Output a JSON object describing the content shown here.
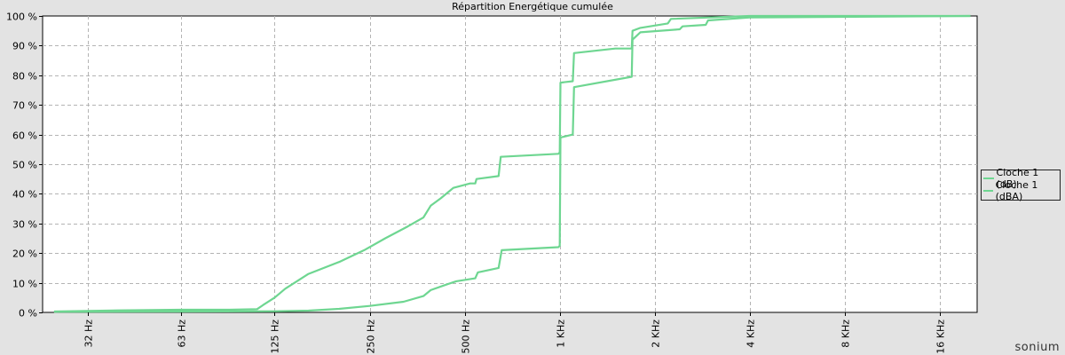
{
  "brand": "sonium",
  "colors": {
    "series": "#6ed691",
    "grid": "#b4b4b4",
    "axis": "#000000"
  },
  "chart_data": {
    "type": "line",
    "title": "Répartition Energétique cumulée",
    "xscale": "log2",
    "xlim": [
      23,
      21000
    ],
    "ylim": [
      0,
      100
    ],
    "grid": true,
    "legend_position": "right",
    "x_ticks": [
      {
        "value": 32,
        "label": "32 Hz"
      },
      {
        "value": 63,
        "label": "63 Hz"
      },
      {
        "value": 125,
        "label": "125 Hz"
      },
      {
        "value": 250,
        "label": "250 Hz"
      },
      {
        "value": 500,
        "label": "500 Hz"
      },
      {
        "value": 1000,
        "label": "1 KHz"
      },
      {
        "value": 2000,
        "label": "2 KHz"
      },
      {
        "value": 4000,
        "label": "4 KHz"
      },
      {
        "value": 8000,
        "label": "8 KHz"
      },
      {
        "value": 16000,
        "label": "16 KHz"
      }
    ],
    "y_ticks": [
      {
        "value": 0,
        "label": "0 %"
      },
      {
        "value": 10,
        "label": "10 %"
      },
      {
        "value": 20,
        "label": "20 %"
      },
      {
        "value": 30,
        "label": "30 %"
      },
      {
        "value": 40,
        "label": "40 %"
      },
      {
        "value": 50,
        "label": "50 %"
      },
      {
        "value": 60,
        "label": "60 %"
      },
      {
        "value": 70,
        "label": "70 %"
      },
      {
        "value": 80,
        "label": "80 %"
      },
      {
        "value": 90,
        "label": "90 %"
      },
      {
        "value": 100,
        "label": "100 %"
      }
    ],
    "series": [
      {
        "name": "Cloche 1 (dB)",
        "points": [
          [
            25,
            0.3
          ],
          [
            40,
            0.7
          ],
          [
            63,
            0.9
          ],
          [
            90,
            0.9
          ],
          [
            110,
            1.1
          ],
          [
            115,
            2.5
          ],
          [
            125,
            5
          ],
          [
            135,
            8
          ],
          [
            160,
            13
          ],
          [
            200,
            17
          ],
          [
            240,
            21
          ],
          [
            280,
            25
          ],
          [
            330,
            29
          ],
          [
            370,
            32
          ],
          [
            390,
            36
          ],
          [
            420,
            38.5
          ],
          [
            460,
            42
          ],
          [
            520,
            43.5
          ],
          [
            540,
            43.5
          ],
          [
            545,
            45
          ],
          [
            640,
            46
          ],
          [
            650,
            52.5
          ],
          [
            990,
            53.5
          ],
          [
            1000,
            54
          ],
          [
            1005,
            77.5
          ],
          [
            1100,
            78
          ],
          [
            1110,
            87.5
          ],
          [
            1500,
            89
          ],
          [
            1690,
            89
          ],
          [
            1700,
            95
          ],
          [
            1800,
            96
          ],
          [
            2200,
            97.5
          ],
          [
            2250,
            99
          ],
          [
            4000,
            100
          ],
          [
            20000,
            100
          ]
        ]
      },
      {
        "name": "Cloche 1 (dBA)",
        "points": [
          [
            25,
            0.2
          ],
          [
            63,
            0.3
          ],
          [
            125,
            0.4
          ],
          [
            160,
            0.6
          ],
          [
            200,
            1.2
          ],
          [
            250,
            2.2
          ],
          [
            320,
            3.6
          ],
          [
            370,
            5.5
          ],
          [
            390,
            7.5
          ],
          [
            440,
            9.5
          ],
          [
            470,
            10.5
          ],
          [
            540,
            11.5
          ],
          [
            550,
            13.5
          ],
          [
            640,
            15
          ],
          [
            655,
            21
          ],
          [
            990,
            22
          ],
          [
            1000,
            22.5
          ],
          [
            1005,
            59
          ],
          [
            1100,
            60
          ],
          [
            1110,
            76
          ],
          [
            1690,
            79.5
          ],
          [
            1700,
            92
          ],
          [
            1800,
            94.5
          ],
          [
            2400,
            95.5
          ],
          [
            2450,
            96.5
          ],
          [
            2900,
            97
          ],
          [
            2950,
            98.5
          ],
          [
            4000,
            99.5
          ],
          [
            20000,
            100
          ]
        ]
      }
    ]
  }
}
